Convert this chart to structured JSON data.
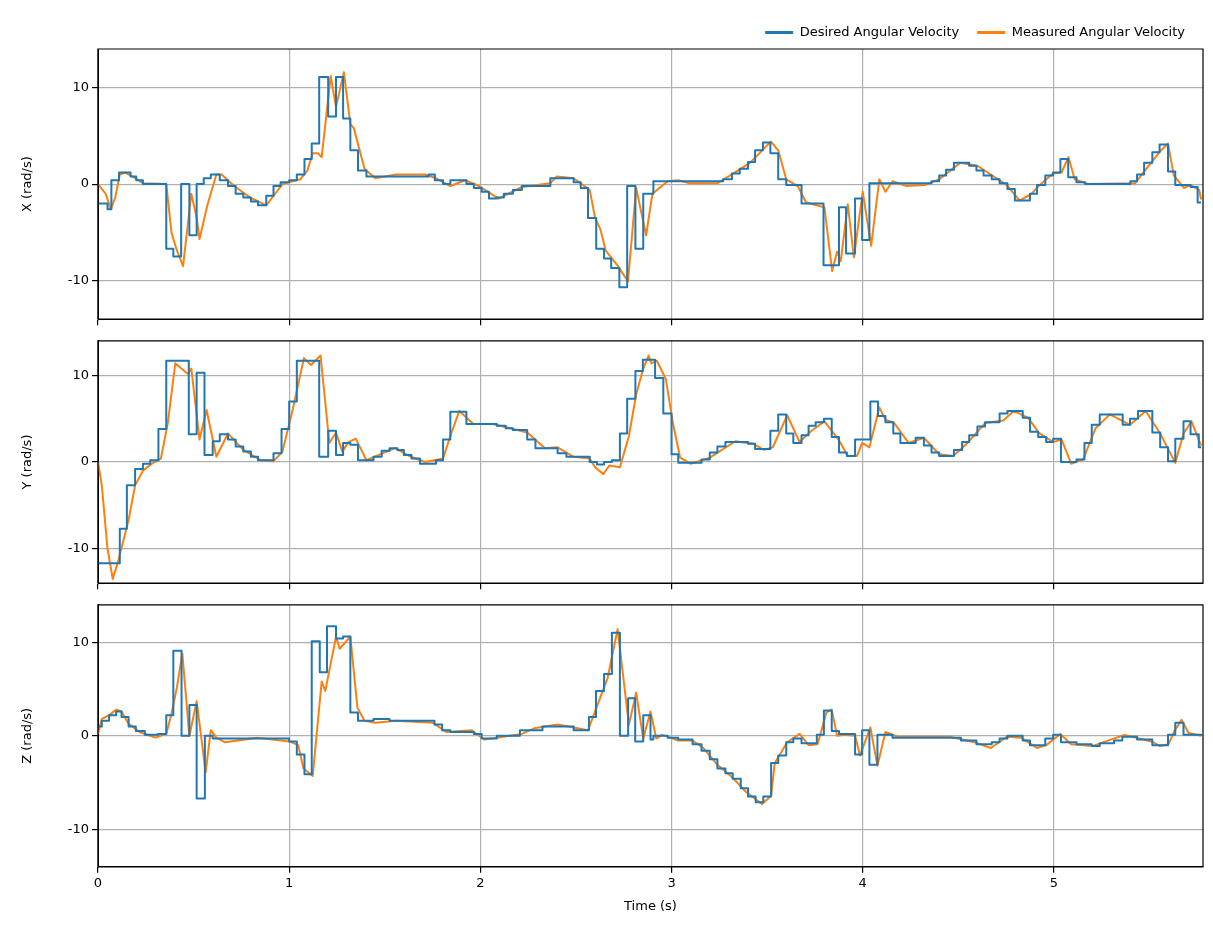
{
  "chart_data": [
    {
      "type": "line",
      "ylabel": "X (rad/s)",
      "xlim": [
        0,
        5.78
      ],
      "xticks": [
        0,
        1,
        2,
        3,
        4,
        5
      ],
      "ylim": [
        -14,
        14
      ],
      "yticks": [
        -10,
        0,
        10
      ],
      "grid": true,
      "legend": "top right",
      "tick_labels": "y",
      "series": [
        {
          "name": "Desired Angular Velocity",
          "type": "step",
          "color": "#1f77b4",
          "x": [
            0,
            0.05,
            0.07,
            0.11,
            0.17,
            0.2,
            0.235,
            0.357,
            0.394,
            0.435,
            0.478,
            0.516,
            0.553,
            0.59,
            0.637,
            0.68,
            0.72,
            0.76,
            0.8,
            0.837,
            0.88,
            0.918,
            0.955,
            1.0,
            1.04,
            1.08,
            1.118,
            1.157,
            1.204,
            1.245,
            1.282,
            1.32,
            1.36,
            1.404,
            1.73,
            1.762,
            1.805,
            1.843,
            1.927,
            1.966,
            2.007,
            2.045,
            2.086,
            2.123,
            2.17,
            2.217,
            2.366,
            2.488,
            2.525,
            2.563,
            2.606,
            2.647,
            2.684,
            2.727,
            2.768,
            2.811,
            2.852,
            2.905,
            3.27,
            3.316,
            3.357,
            3.4,
            3.437,
            3.478,
            3.517,
            3.558,
            3.6,
            3.68,
            3.795,
            3.876,
            3.913,
            3.96,
            3.997,
            4.035,
            4.36,
            4.4,
            4.436,
            4.477,
            4.557,
            4.595,
            4.632,
            4.675,
            4.716,
            4.757,
            4.796,
            4.875,
            4.912,
            4.955,
            4.996,
            5.034,
            5.075,
            5.118,
            5.164,
            5.4,
            5.435,
            5.472,
            5.515,
            5.553,
            5.597,
            5.635,
            5.715,
            5.752,
            5.77
          ],
          "values": [
            -2,
            -2.6,
            0.4,
            1.2,
            0.8,
            0.4,
            0,
            -6.7,
            -7.5,
            0,
            -5.3,
            0,
            0.6,
            1.0,
            0.4,
            -0.2,
            -1.0,
            -1.4,
            -1.8,
            -2.2,
            -1.2,
            -0.2,
            0.2,
            0.4,
            1.0,
            2.6,
            4.2,
            11.1,
            7.0,
            11.1,
            6.8,
            3.5,
            1.4,
            0.8,
            1.0,
            0.4,
            0,
            0.4,
            0,
            -0.4,
            -0.8,
            -1.5,
            -1.4,
            -1.0,
            -0.6,
            -0.2,
            0.6,
            0.2,
            -0.4,
            -3.5,
            -6.7,
            -7.7,
            -8.7,
            -10.7,
            -0.2,
            -6.7,
            -1.0,
            0.3,
            0.5,
            1.1,
            1.6,
            2.3,
            3.5,
            4.3,
            3.2,
            0.5,
            -0.1,
            -2.0,
            -8.4,
            -2.4,
            -7.2,
            -1.5,
            -5.8,
            0.1,
            0.3,
            0.9,
            1.5,
            2.2,
            1.9,
            1.4,
            0.9,
            0.5,
            0.1,
            -0.5,
            -1.7,
            -1.0,
            -0.1,
            0.9,
            1.2,
            2.6,
            0.7,
            0.2,
            0,
            0.3,
            1.0,
            2.2,
            3.3,
            4.1,
            1.3,
            -0.1,
            -0.3,
            -1.9,
            -1.9
          ]
        },
        {
          "name": "Measured Angular Velocity",
          "type": "line",
          "color": "#ff7f0e",
          "x": [
            0,
            0.04,
            0.067,
            0.09,
            0.114,
            0.142,
            0.18,
            0.235,
            0.357,
            0.385,
            0.413,
            0.445,
            0.488,
            0.516,
            0.531,
            0.572,
            0.619,
            0.647,
            0.712,
            0.796,
            0.88,
            0.927,
            0.965,
            1.058,
            1.095,
            1.123,
            1.15,
            1.17,
            1.217,
            1.245,
            1.286,
            1.32,
            1.338,
            1.394,
            1.45,
            1.56,
            1.712,
            1.768,
            1.843,
            1.92,
            1.993,
            2.04,
            2.095,
            2.217,
            2.366,
            2.4,
            2.488,
            2.572,
            2.6,
            2.628,
            2.656,
            2.72,
            2.772,
            2.815,
            2.867,
            2.9,
            2.98,
            3.035,
            3.09,
            3.24,
            3.316,
            3.41,
            3.52,
            3.558,
            3.6,
            3.66,
            3.704,
            3.8,
            3.84,
            3.866,
            3.885,
            3.922,
            3.954,
            4.0,
            4.044,
            4.087,
            4.119,
            4.156,
            4.23,
            4.324,
            4.4,
            4.51,
            4.6,
            4.754,
            4.82,
            4.884,
            4.92,
            4.996,
            5.04,
            5.076,
            5.109,
            5.18,
            5.425,
            5.48,
            5.556,
            5.597,
            5.627,
            5.68,
            5.715,
            5.76,
            5.77
          ],
          "values": [
            0,
            -1.0,
            -2.6,
            -1.4,
            1.0,
            1.2,
            0.8,
            0.1,
            0,
            -5.1,
            -6.9,
            -8.5,
            -1.0,
            -3.5,
            -5.7,
            -2.2,
            1.0,
            1.0,
            -0.2,
            -1.4,
            -2.2,
            -1.0,
            0,
            0.5,
            1.4,
            3.2,
            3.2,
            2.8,
            11.2,
            8.0,
            11.6,
            6.2,
            5.8,
            1.6,
            0.6,
            1.0,
            1.0,
            0.6,
            -0.2,
            0.4,
            -0.2,
            -0.8,
            -1.5,
            -0.3,
            0.1,
            0.8,
            0.6,
            -0.6,
            -3.5,
            -4.7,
            -6.9,
            -8.5,
            -10.1,
            -0.4,
            -5.3,
            -1.0,
            0.3,
            0.4,
            0.1,
            0.1,
            1.0,
            2.2,
            4.4,
            3.5,
            0.5,
            -0.2,
            -1.9,
            -2.4,
            -9.0,
            -7.0,
            -8.0,
            -2.1,
            -7.6,
            -0.8,
            -6.4,
            0.5,
            -0.8,
            0.3,
            -0.2,
            -0.1,
            0.5,
            2.2,
            1.9,
            -0.1,
            -1.7,
            -1.0,
            -0.2,
            1.1,
            1.2,
            2.8,
            0.5,
            0,
            0.1,
            1.5,
            3.4,
            4.2,
            0.9,
            -0.4,
            -0.1,
            -0.6,
            -1.6
          ]
        }
      ]
    },
    {
      "type": "line",
      "ylabel": "Y (rad/s)",
      "xlim": [
        0,
        5.78
      ],
      "xticks": [
        0,
        1,
        2,
        3,
        4,
        5
      ],
      "ylim": [
        -14,
        14
      ],
      "yticks": [
        -10,
        0,
        10
      ],
      "grid": true,
      "tick_labels": "y",
      "series": [
        {
          "type": "step",
          "color": "#1f77b4",
          "x": [
            0,
            0.114,
            0.151,
            0.194,
            0.235,
            0.273,
            0.316,
            0.357,
            0.475,
            0.516,
            0.557,
            0.6,
            0.637,
            0.68,
            0.72,
            0.76,
            0.8,
            0.837,
            0.918,
            0.96,
            1.0,
            1.04,
            1.157,
            1.204,
            1.245,
            1.282,
            1.32,
            1.36,
            1.441,
            1.484,
            1.525,
            1.566,
            1.6,
            1.64,
            1.684,
            1.768,
            1.805,
            1.843,
            1.927,
            2.086,
            2.133,
            2.17,
            2.245,
            2.288,
            2.404,
            2.45,
            2.572,
            2.61,
            2.647,
            2.688,
            2.73,
            2.768,
            2.811,
            2.85,
            2.914,
            2.957,
            3.0,
            3.035,
            3.157,
            3.2,
            3.24,
            3.282,
            3.4,
            3.437,
            3.517,
            3.558,
            3.6,
            3.637,
            3.68,
            3.717,
            3.754,
            3.797,
            3.838,
            3.876,
            3.917,
            3.96,
            4.04,
            4.08,
            4.119,
            4.16,
            4.197,
            4.277,
            4.32,
            4.36,
            4.4,
            4.477,
            4.52,
            4.557,
            4.6,
            4.64,
            4.716,
            4.757,
            4.837,
            4.875,
            4.918,
            4.96,
            4.996,
            5.037,
            5.118,
            5.16,
            5.198,
            5.24,
            5.36,
            5.398,
            5.44,
            5.515,
            5.556,
            5.597,
            5.635,
            5.678,
            5.715,
            5.758,
            5.77
          ],
          "values": [
            -11.7,
            -7.7,
            -2.7,
            -0.8,
            -0.2,
            0.2,
            3.8,
            11.7,
            3.2,
            10.3,
            0.8,
            2.4,
            3.2,
            2.6,
            1.8,
            1.2,
            0.6,
            0.2,
            1.0,
            3.8,
            7.0,
            11.7,
            0.6,
            3.6,
            0.8,
            2.2,
            2.0,
            0.2,
            0.6,
            1.3,
            1.6,
            1.4,
            0.8,
            0.4,
            -0.2,
            0.2,
            2.6,
            5.8,
            4.4,
            4.2,
            3.9,
            3.7,
            2.6,
            1.6,
            1.0,
            0.6,
            0,
            -0.3,
            0,
            0.2,
            3.3,
            7.3,
            10.5,
            11.8,
            9.7,
            5.6,
            0.9,
            -0.1,
            0.3,
            1.1,
            1.8,
            2.3,
            2.1,
            1.5,
            3.6,
            5.5,
            3.3,
            2.2,
            3.1,
            4.2,
            4.6,
            5.0,
            2.9,
            1.1,
            0.7,
            2.6,
            7.0,
            5.3,
            4.6,
            3.3,
            2.2,
            2.8,
            1.9,
            1.1,
            0.7,
            1.4,
            2.3,
            3.1,
            4.1,
            4.6,
            5.6,
            5.9,
            5.1,
            3.5,
            2.9,
            2.3,
            2.7,
            0,
            0.3,
            2.2,
            4.3,
            5.5,
            4.3,
            5.0,
            5.9,
            3.4,
            1.7,
            0.1,
            2.7,
            4.7,
            3.2,
            1.7,
            1.7
          ]
        },
        {
          "type": "line",
          "color": "#ff7f0e",
          "x": [
            0,
            0.02,
            0.049,
            0.077,
            0.105,
            0.16,
            0.194,
            0.235,
            0.282,
            0.329,
            0.366,
            0.404,
            0.469,
            0.488,
            0.531,
            0.568,
            0.619,
            0.68,
            0.76,
            0.852,
            0.918,
            0.965,
            1.02,
            1.077,
            1.114,
            1.164,
            1.21,
            1.245,
            1.278,
            1.31,
            1.348,
            1.404,
            1.488,
            1.553,
            1.637,
            1.712,
            1.805,
            1.843,
            1.89,
            1.964,
            2.067,
            2.245,
            2.338,
            2.404,
            2.488,
            2.572,
            2.6,
            2.643,
            2.675,
            2.73,
            2.777,
            2.815,
            2.852,
            2.88,
            2.895,
            2.923,
            2.97,
            3.007,
            3.045,
            3.1,
            3.2,
            3.334,
            3.428,
            3.484,
            3.53,
            3.605,
            3.67,
            3.726,
            3.8,
            3.876,
            3.922,
            3.97,
            3.997,
            4.035,
            4.087,
            4.119,
            4.165,
            4.24,
            4.32,
            4.4,
            4.473,
            4.548,
            4.64,
            4.735,
            4.79,
            4.866,
            4.92,
            4.996,
            5.04,
            5.09,
            5.153,
            5.218,
            5.293,
            5.398,
            5.48,
            5.556,
            5.635,
            5.678,
            5.72,
            5.77
          ],
          "values": [
            0,
            -2.7,
            -9.9,
            -13.5,
            -11.5,
            -6.7,
            -2.7,
            -1.0,
            -0.2,
            0.4,
            4.6,
            11.4,
            10.2,
            10.8,
            2.6,
            6.0,
            0.6,
            3.3,
            1.4,
            0.2,
            0.1,
            1.2,
            6.2,
            12.0,
            11.2,
            12.3,
            2.2,
            3.4,
            1.2,
            2.3,
            2.7,
            0.2,
            1.0,
            1.6,
            0.6,
            0,
            0.4,
            3.0,
            5.9,
            4.4,
            4.4,
            3.4,
            1.6,
            1.7,
            0.6,
            0.4,
            -0.6,
            -1.4,
            -0.4,
            -0.6,
            3.0,
            7.8,
            10.8,
            12.3,
            11.4,
            11.7,
            9.6,
            4.5,
            0.5,
            -0.2,
            0.5,
            2.4,
            2.1,
            1.4,
            1.7,
            5.4,
            2.3,
            3.5,
            4.7,
            2.5,
            0.7,
            0.7,
            2.2,
            1.7,
            6.3,
            4.9,
            4.5,
            2.2,
            2.8,
            0.9,
            0.7,
            2.2,
            4.5,
            4.8,
            5.9,
            5.1,
            3.4,
            2.3,
            2.6,
            -0.2,
            0.3,
            3.9,
            5.5,
            4.3,
            5.9,
            3.3,
            -0.1,
            3.3,
            4.7,
            1.9
          ]
        }
      ]
    },
    {
      "type": "line",
      "ylabel": "Z (rad/s)",
      "xlabel": "Time (s)",
      "xlim": [
        0,
        5.78
      ],
      "xticks": [
        0,
        1,
        2,
        3,
        4,
        5
      ],
      "ylim": [
        -14,
        14
      ],
      "yticks": [
        -10,
        0,
        10
      ],
      "grid": true,
      "series": [
        {
          "type": "step",
          "color": "#1f77b4",
          "x": [
            0,
            0.02,
            0.058,
            0.095,
            0.123,
            0.16,
            0.198,
            0.245,
            0.314,
            0.357,
            0.394,
            0.437,
            0.478,
            0.516,
            0.559,
            0.6,
            1.0,
            1.04,
            1.08,
            1.118,
            1.16,
            1.198,
            1.245,
            1.282,
            1.32,
            1.36,
            1.441,
            1.525,
            1.76,
            1.8,
            1.843,
            1.966,
            2.007,
            2.086,
            2.207,
            2.325,
            2.488,
            2.568,
            2.605,
            2.647,
            2.688,
            2.73,
            2.773,
            2.81,
            2.852,
            2.89,
            2.905,
            2.98,
            3.035,
            3.11,
            3.157,
            3.2,
            3.24,
            3.282,
            3.32,
            3.362,
            3.4,
            3.44,
            3.48,
            3.521,
            3.558,
            3.6,
            3.637,
            3.68,
            3.76,
            3.797,
            3.838,
            3.876,
            3.96,
            3.997,
            4.035,
            4.077,
            4.156,
            4.514,
            4.595,
            4.675,
            4.716,
            4.757,
            4.837,
            4.875,
            4.955,
            4.996,
            5.037,
            5.118,
            5.198,
            5.24,
            5.315,
            5.358,
            5.435,
            5.515,
            5.597,
            5.635,
            5.678,
            5.77
          ],
          "values": [
            1.0,
            1.6,
            2.2,
            2.6,
            2.0,
            1.0,
            0.5,
            0.1,
            0.2,
            2.2,
            9.1,
            0,
            3.3,
            -6.7,
            0,
            -0.3,
            -0.6,
            -2.0,
            -4.1,
            10.1,
            6.8,
            11.7,
            10.4,
            10.6,
            2.5,
            1.6,
            1.8,
            1.6,
            1.2,
            0.6,
            0.4,
            0.2,
            -0.3,
            0,
            0.6,
            1.0,
            0.6,
            2.0,
            4.8,
            6.6,
            11.0,
            0,
            4.0,
            -0.6,
            2.2,
            -0.4,
            0,
            -0.2,
            -0.4,
            -0.9,
            -1.6,
            -2.5,
            -3.5,
            -4.0,
            -4.6,
            -5.6,
            -6.5,
            -7.1,
            -6.5,
            -2.9,
            -2.1,
            -0.7,
            -0.3,
            -0.8,
            0.1,
            2.7,
            0.5,
            0.2,
            -2.0,
            0.6,
            -3.1,
            0.1,
            -0.2,
            -0.5,
            -0.9,
            -0.7,
            -0.3,
            0,
            -0.5,
            -1.0,
            -0.3,
            0.1,
            -0.7,
            -0.9,
            -1.1,
            -0.8,
            -0.5,
            -0.1,
            -0.4,
            -1.0,
            0.1,
            1.4,
            0.1,
            0
          ]
        },
        {
          "type": "line",
          "color": "#ff7f0e",
          "x": [
            0,
            0.02,
            0.058,
            0.095,
            0.123,
            0.16,
            0.217,
            0.3,
            0.357,
            0.385,
            0.413,
            0.441,
            0.478,
            0.516,
            0.563,
            0.59,
            0.619,
            0.665,
            0.834,
            1.0,
            1.047,
            1.075,
            1.123,
            1.17,
            1.189,
            1.245,
            1.264,
            1.32,
            1.357,
            1.394,
            1.45,
            1.563,
            1.75,
            1.824,
            1.955,
            2.02,
            2.086,
            2.217,
            2.282,
            2.404,
            2.563,
            2.6,
            2.666,
            2.718,
            2.777,
            2.815,
            2.852,
            2.89,
            2.92,
            2.951,
            3.035,
            3.11,
            3.166,
            3.24,
            3.316,
            3.39,
            3.474,
            3.521,
            3.54,
            3.605,
            3.67,
            3.717,
            3.764,
            3.81,
            3.838,
            3.866,
            3.904,
            3.96,
            3.986,
            4.04,
            4.077,
            4.119,
            4.184,
            4.455,
            4.586,
            4.67,
            4.754,
            4.828,
            4.912,
            4.96,
            5.034,
            5.09,
            5.2,
            5.37,
            5.51,
            5.556,
            5.6,
            5.63,
            5.668,
            5.705,
            5.77
          ],
          "values": [
            0.2,
            1.8,
            2.2,
            2.8,
            2.6,
            1.3,
            0.4,
            -0.2,
            0.2,
            2.4,
            5.2,
            8.8,
            0,
            3.7,
            -3.9,
            0.6,
            -0.2,
            -0.7,
            -0.2,
            -0.6,
            -1.0,
            -3.5,
            -4.3,
            5.8,
            4.8,
            10.6,
            9.3,
            10.6,
            3.0,
            1.6,
            1.4,
            1.6,
            1.4,
            0.4,
            0.6,
            -0.4,
            -0.2,
            0.2,
            0.8,
            1.2,
            0.6,
            2.6,
            6.2,
            11.4,
            1.2,
            4.6,
            -0.3,
            2.6,
            -0.3,
            0.1,
            -0.5,
            -0.5,
            -1.3,
            -3.1,
            -4.4,
            -6.0,
            -7.3,
            -6.4,
            -2.9,
            -0.7,
            0.2,
            -1.0,
            -0.9,
            2.5,
            2.8,
            0,
            0.1,
            0,
            -2.1,
            0.9,
            -3.2,
            0.4,
            -0.1,
            -0.1,
            -0.7,
            -1.3,
            -0.1,
            -0.2,
            -1.3,
            -1.0,
            0.2,
            -0.9,
            -1.1,
            0.1,
            -0.6,
            -1.1,
            -0.9,
            0.5,
            1.7,
            0.3,
            0
          ]
        }
      ]
    }
  ]
}
